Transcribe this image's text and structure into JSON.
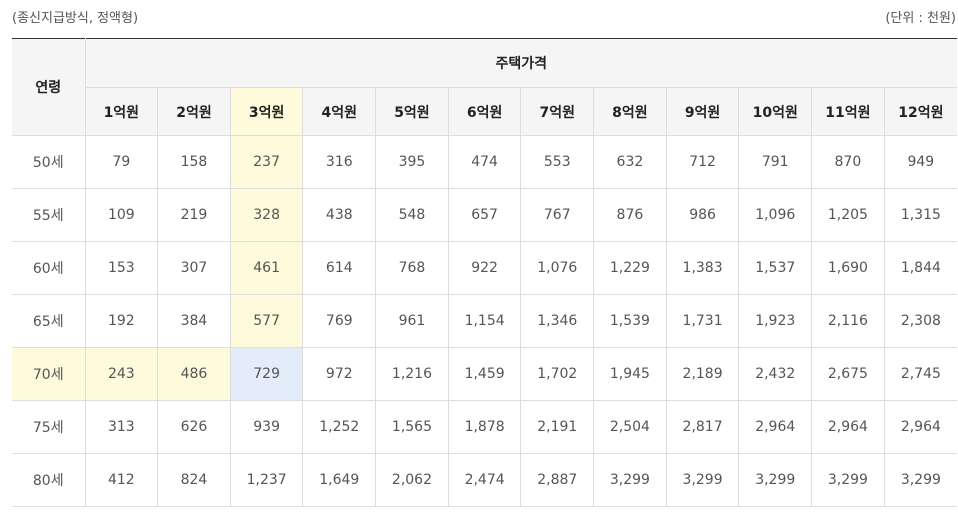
{
  "caption": {
    "left": "(종신지급방식, 정액형)",
    "right": "(단위 : 천원)"
  },
  "table": {
    "age_header": "연령",
    "group_header": "주택가격",
    "price_headers": [
      "1억원",
      "2억원",
      "3억원",
      "4억원",
      "5억원",
      "6억원",
      "7억원",
      "8억원",
      "9억원",
      "10억원",
      "11억원",
      "12억원"
    ],
    "rows": [
      {
        "age": "50세",
        "values": [
          "79",
          "158",
          "237",
          "316",
          "395",
          "474",
          "553",
          "632",
          "712",
          "791",
          "870",
          "949"
        ]
      },
      {
        "age": "55세",
        "values": [
          "109",
          "219",
          "328",
          "438",
          "548",
          "657",
          "767",
          "876",
          "986",
          "1,096",
          "1,205",
          "1,315"
        ]
      },
      {
        "age": "60세",
        "values": [
          "153",
          "307",
          "461",
          "614",
          "768",
          "922",
          "1,076",
          "1,229",
          "1,383",
          "1,537",
          "1,690",
          "1,844"
        ]
      },
      {
        "age": "65세",
        "values": [
          "192",
          "384",
          "577",
          "769",
          "961",
          "1,154",
          "1,346",
          "1,539",
          "1,731",
          "1,923",
          "2,116",
          "2,308"
        ]
      },
      {
        "age": "70세",
        "values": [
          "243",
          "486",
          "729",
          "972",
          "1,216",
          "1,459",
          "1,702",
          "1,945",
          "2,189",
          "2,432",
          "2,675",
          "2,745"
        ]
      },
      {
        "age": "75세",
        "values": [
          "313",
          "626",
          "939",
          "1,252",
          "1,565",
          "1,878",
          "2,191",
          "2,504",
          "2,817",
          "2,964",
          "2,964",
          "2,964"
        ]
      },
      {
        "age": "80세",
        "values": [
          "412",
          "824",
          "1,237",
          "1,649",
          "2,062",
          "2,474",
          "2,887",
          "3,299",
          "3,299",
          "3,299",
          "3,299",
          "3,299"
        ]
      }
    ]
  },
  "highlight": {
    "row_color": "#fefbdc",
    "column_color": "#fefbdc",
    "intersection_color": "#e4ecfa",
    "header_bg": "#f5f5f5",
    "top_border": "#333333"
  }
}
